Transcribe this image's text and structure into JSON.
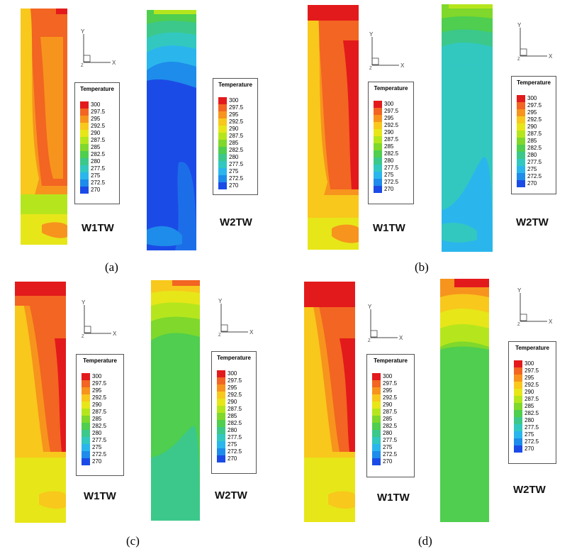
{
  "legend": {
    "title": "Temperature",
    "levels": [
      "300",
      "297.5",
      "295",
      "292.5",
      "290",
      "287.5",
      "285",
      "282.5",
      "280",
      "277.5",
      "275",
      "272.5",
      "270"
    ],
    "colors": [
      "#e31a1c",
      "#f26522",
      "#f7941d",
      "#f8c81c",
      "#e7e619",
      "#b5e61d",
      "#7fd82b",
      "#4fce4f",
      "#3cc88a",
      "#32c8c0",
      "#2ab6ec",
      "#1e8cea",
      "#1b4be6"
    ]
  },
  "axes": {
    "y_label": "Y",
    "x_label": "X",
    "z_label": "Z"
  },
  "wall_labels": {
    "w1": "W1TW",
    "w2": "W2TW"
  },
  "panels": [
    {
      "id": "a",
      "label": "(a)"
    },
    {
      "id": "b",
      "label": "(b)"
    },
    {
      "id": "c",
      "label": "(c)"
    },
    {
      "id": "d",
      "label": "(d)"
    }
  ]
}
